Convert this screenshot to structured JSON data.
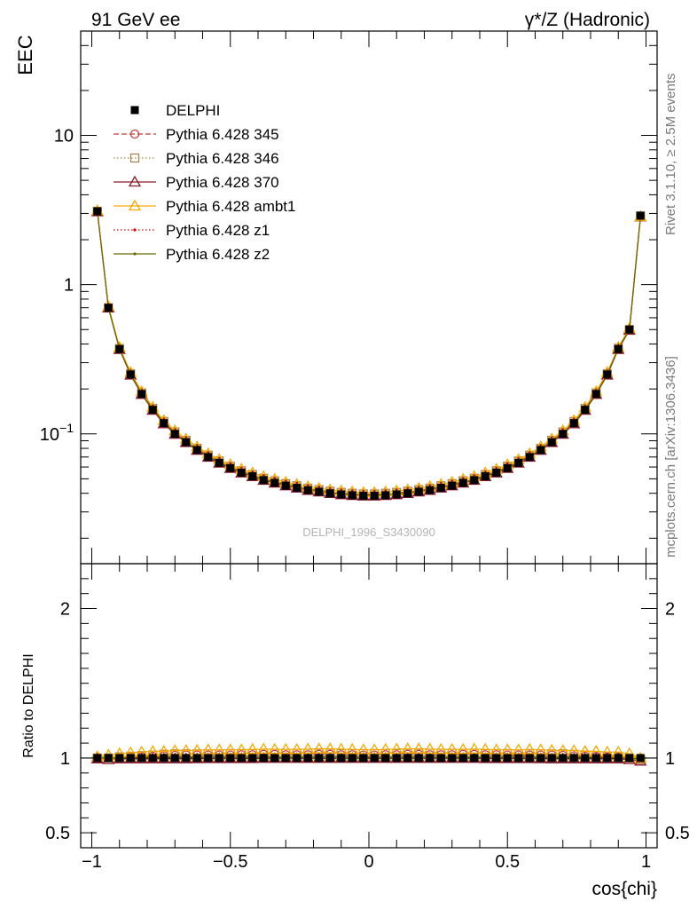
{
  "header": {
    "left_title": "91 GeV ee",
    "right_title_main": "γ*/Z (Hadronic)"
  },
  "side_labels": {
    "rivet": "Rivet 3.1.10, ≥ 2.5M events",
    "mcplots": "mcplots.cern.ch [arXiv:1306.3436]"
  },
  "watermark": "DELPHI_1996_S3430090",
  "chart_data": [
    {
      "type": "line",
      "panel": "main",
      "ylabel": "EEC",
      "xlabel": "cos{chi}",
      "yscale": "log",
      "xlim": [
        -1.04,
        1.04
      ],
      "ylim": [
        0.0135,
        50
      ],
      "yticklabels": [
        {
          "value": 0.1,
          "base": "10",
          "exp": "−1"
        },
        {
          "value": 1,
          "text": "1"
        },
        {
          "value": 10,
          "text": "10"
        }
      ],
      "legend_position": "top-left",
      "x": [
        -0.98,
        -0.94,
        -0.9,
        -0.86,
        -0.82,
        -0.78,
        -0.74,
        -0.7,
        -0.66,
        -0.62,
        -0.58,
        -0.54,
        -0.5,
        -0.46,
        -0.42,
        -0.38,
        -0.34,
        -0.3,
        -0.26,
        -0.22,
        -0.18,
        -0.14,
        -0.1,
        -0.06,
        -0.02,
        0.02,
        0.06,
        0.1,
        0.14,
        0.18,
        0.22,
        0.26,
        0.3,
        0.34,
        0.38,
        0.42,
        0.46,
        0.5,
        0.54,
        0.58,
        0.62,
        0.66,
        0.7,
        0.74,
        0.78,
        0.82,
        0.86,
        0.9,
        0.94,
        0.98
      ],
      "series": [
        {
          "name": "DELPHI",
          "color": "#000000",
          "marker": "filled-square",
          "line": "none",
          "values": [
            3.1,
            0.7,
            0.37,
            0.25,
            0.185,
            0.145,
            0.118,
            0.1,
            0.088,
            0.078,
            0.07,
            0.064,
            0.059,
            0.055,
            0.052,
            0.049,
            0.047,
            0.045,
            0.0435,
            0.042,
            0.041,
            0.04,
            0.0393,
            0.0388,
            0.0385,
            0.0385,
            0.0388,
            0.0393,
            0.04,
            0.041,
            0.042,
            0.0435,
            0.045,
            0.047,
            0.049,
            0.052,
            0.055,
            0.059,
            0.064,
            0.07,
            0.078,
            0.088,
            0.1,
            0.118,
            0.145,
            0.185,
            0.25,
            0.37,
            0.5,
            2.9
          ]
        },
        {
          "name": "Pythia 6.428 345",
          "color": "#c43a3a",
          "marker": "open-circle",
          "line": "dashed",
          "values": [
            3.1,
            0.7,
            0.372,
            0.252,
            0.187,
            0.147,
            0.12,
            0.102,
            0.09,
            0.0795,
            0.0715,
            0.0653,
            0.0602,
            0.0562,
            0.053,
            0.05,
            0.0481,
            0.046,
            0.0445,
            0.043,
            0.042,
            0.041,
            0.0402,
            0.0397,
            0.0393,
            0.0393,
            0.0397,
            0.0402,
            0.041,
            0.042,
            0.043,
            0.0445,
            0.046,
            0.0481,
            0.05,
            0.053,
            0.0562,
            0.0602,
            0.0653,
            0.0715,
            0.0795,
            0.09,
            0.102,
            0.12,
            0.147,
            0.187,
            0.252,
            0.373,
            0.5,
            2.88
          ]
        },
        {
          "name": "Pythia 6.428 346",
          "color": "#a5804a",
          "marker": "open-square",
          "line": "dotted",
          "values": [
            3.1,
            0.7,
            0.373,
            0.253,
            0.188,
            0.148,
            0.121,
            0.103,
            0.0905,
            0.08,
            0.072,
            0.0658,
            0.0607,
            0.0566,
            0.0534,
            0.0504,
            0.0485,
            0.0464,
            0.0449,
            0.0433,
            0.0423,
            0.0413,
            0.0405,
            0.04,
            0.0396,
            0.0396,
            0.04,
            0.0405,
            0.0413,
            0.0423,
            0.0433,
            0.0449,
            0.0464,
            0.0485,
            0.0504,
            0.0534,
            0.0566,
            0.0607,
            0.0658,
            0.072,
            0.08,
            0.0905,
            0.103,
            0.121,
            0.148,
            0.188,
            0.253,
            0.374,
            0.5,
            2.88
          ]
        },
        {
          "name": "Pythia 6.428 370",
          "color": "#8b1a2a",
          "marker": "open-triangle",
          "line": "solid",
          "values": [
            3.08,
            0.698,
            0.368,
            0.248,
            0.184,
            0.144,
            0.117,
            0.0995,
            0.0876,
            0.0777,
            0.0698,
            0.0638,
            0.0588,
            0.0548,
            0.0518,
            0.0489,
            0.0469,
            0.0449,
            0.0434,
            0.0419,
            0.0409,
            0.0399,
            0.0392,
            0.0387,
            0.0384,
            0.0384,
            0.0387,
            0.0392,
            0.0399,
            0.0409,
            0.0419,
            0.0434,
            0.0449,
            0.0469,
            0.0489,
            0.0518,
            0.0548,
            0.0588,
            0.0638,
            0.0698,
            0.0777,
            0.0876,
            0.0995,
            0.117,
            0.144,
            0.184,
            0.248,
            0.368,
            0.495,
            2.85
          ]
        },
        {
          "name": "Pythia 6.428 ambt1",
          "color": "#f5a800",
          "marker": "open-triangle",
          "line": "solid",
          "values": [
            3.13,
            0.715,
            0.38,
            0.258,
            0.192,
            0.151,
            0.123,
            0.105,
            0.0925,
            0.082,
            0.0738,
            0.0674,
            0.0622,
            0.058,
            0.0548,
            0.0518,
            0.0496,
            0.0475,
            0.0459,
            0.0444,
            0.0433,
            0.0422,
            0.0415,
            0.0409,
            0.0405,
            0.0405,
            0.0409,
            0.0415,
            0.0422,
            0.0433,
            0.0444,
            0.0459,
            0.0475,
            0.0496,
            0.0518,
            0.0548,
            0.058,
            0.0622,
            0.0674,
            0.0738,
            0.082,
            0.0925,
            0.105,
            0.123,
            0.151,
            0.192,
            0.258,
            0.38,
            0.51,
            2.86
          ]
        },
        {
          "name": "Pythia 6.428 z1",
          "color": "#d00000",
          "marker": "dot",
          "line": "dotted",
          "values": [
            3.1,
            0.7,
            0.371,
            0.251,
            0.186,
            0.146,
            0.119,
            0.101,
            0.089,
            0.0788,
            0.0709,
            0.0648,
            0.0597,
            0.0557,
            0.0526,
            0.0496,
            0.0477,
            0.0456,
            0.0441,
            0.0426,
            0.0416,
            0.0406,
            0.0398,
            0.0393,
            0.039,
            0.039,
            0.0393,
            0.0398,
            0.0406,
            0.0416,
            0.0426,
            0.0441,
            0.0456,
            0.0477,
            0.0496,
            0.0526,
            0.0557,
            0.0597,
            0.0648,
            0.0709,
            0.0788,
            0.089,
            0.101,
            0.119,
            0.146,
            0.186,
            0.251,
            0.372,
            0.5,
            2.88
          ]
        },
        {
          "name": "Pythia 6.428 z2",
          "color": "#6b6b00",
          "marker": "dot",
          "line": "solid",
          "values": [
            3.1,
            0.7,
            0.371,
            0.251,
            0.186,
            0.146,
            0.119,
            0.101,
            0.0888,
            0.0786,
            0.0707,
            0.0646,
            0.0595,
            0.0555,
            0.0524,
            0.0494,
            0.0475,
            0.0454,
            0.0439,
            0.0424,
            0.0414,
            0.0404,
            0.0396,
            0.0391,
            0.0388,
            0.0388,
            0.0391,
            0.0396,
            0.0404,
            0.0414,
            0.0424,
            0.0439,
            0.0454,
            0.0475,
            0.0494,
            0.0524,
            0.0555,
            0.0595,
            0.0646,
            0.0707,
            0.0786,
            0.0888,
            0.101,
            0.119,
            0.146,
            0.186,
            0.251,
            0.372,
            0.5,
            2.88
          ]
        }
      ]
    },
    {
      "type": "line",
      "panel": "ratio",
      "ylabel": "Ratio to DELPHI",
      "xlabel": "cos{chi}",
      "xlim": [
        -1.04,
        1.04
      ],
      "ylim": [
        0.4,
        2.3
      ],
      "yticks": [
        0.5,
        1,
        2
      ],
      "yticklabels": [
        "0.5",
        "1",
        "2"
      ],
      "xticks": [
        -1,
        -0.5,
        0,
        0.5,
        1
      ],
      "xticklabels": [
        "−1",
        "−0.5",
        "0",
        "0.5",
        "1"
      ],
      "reference_line": 1,
      "uncertainty_bands": {
        "green_halfwidth": 0.012,
        "yellow_halfwidth": 0.025,
        "green": "#86e58a",
        "yellow": "#f7f79a"
      },
      "x": [
        -0.98,
        -0.94,
        -0.9,
        -0.86,
        -0.82,
        -0.78,
        -0.74,
        -0.7,
        -0.66,
        -0.62,
        -0.58,
        -0.54,
        -0.5,
        -0.46,
        -0.42,
        -0.38,
        -0.34,
        -0.3,
        -0.26,
        -0.22,
        -0.18,
        -0.14,
        -0.1,
        -0.06,
        -0.02,
        0.02,
        0.06,
        0.1,
        0.14,
        0.18,
        0.22,
        0.26,
        0.3,
        0.34,
        0.38,
        0.42,
        0.46,
        0.5,
        0.54,
        0.58,
        0.62,
        0.66,
        0.7,
        0.74,
        0.78,
        0.82,
        0.86,
        0.9,
        0.94,
        0.98
      ],
      "series": [
        {
          "name": "Pythia 6.428 345",
          "color": "#c43a3a",
          "marker": "open-circle",
          "line": "dashed",
          "values": [
            1.0,
            1.0,
            1.005,
            1.008,
            1.01,
            1.012,
            1.015,
            1.018,
            1.02,
            1.02,
            1.02,
            1.02,
            1.02,
            1.022,
            1.022,
            1.025,
            1.025,
            1.022,
            1.022,
            1.022,
            1.025,
            1.025,
            1.022,
            1.022,
            1.02,
            1.02,
            1.022,
            1.022,
            1.025,
            1.025,
            1.022,
            1.022,
            1.022,
            1.025,
            1.025,
            1.022,
            1.022,
            1.02,
            1.02,
            1.02,
            1.02,
            1.02,
            1.018,
            1.015,
            1.012,
            1.01,
            1.008,
            1.005,
            1.0,
            0.99
          ]
        },
        {
          "name": "Pythia 6.428 346",
          "color": "#a5804a",
          "marker": "open-square",
          "line": "dotted",
          "values": [
            1.0,
            1.0,
            1.008,
            1.012,
            1.016,
            1.02,
            1.025,
            1.028,
            1.028,
            1.028,
            1.028,
            1.028,
            1.03,
            1.03,
            1.03,
            1.032,
            1.032,
            1.032,
            1.032,
            1.032,
            1.032,
            1.032,
            1.03,
            1.03,
            1.03,
            1.03,
            1.03,
            1.03,
            1.032,
            1.032,
            1.032,
            1.032,
            1.032,
            1.032,
            1.032,
            1.03,
            1.03,
            1.03,
            1.028,
            1.028,
            1.028,
            1.028,
            1.028,
            1.025,
            1.02,
            1.016,
            1.012,
            1.008,
            1.0,
            0.99
          ]
        },
        {
          "name": "Pythia 6.428 370",
          "color": "#8b1a2a",
          "marker": "open-triangle",
          "line": "solid",
          "values": [
            0.995,
            0.99,
            0.995,
            0.995,
            0.995,
            0.995,
            0.995,
            0.995,
            0.995,
            0.996,
            0.997,
            0.997,
            0.997,
            0.997,
            0.997,
            0.998,
            0.998,
            0.998,
            0.998,
            0.998,
            0.998,
            0.998,
            0.998,
            0.998,
            0.998,
            0.998,
            0.998,
            0.998,
            0.998,
            0.998,
            0.998,
            0.998,
            0.998,
            0.998,
            0.998,
            0.997,
            0.997,
            0.997,
            0.997,
            0.997,
            0.996,
            0.995,
            0.995,
            0.995,
            0.995,
            0.995,
            0.995,
            0.995,
            0.99,
            0.98
          ]
        },
        {
          "name": "Pythia 6.428 ambt1",
          "color": "#f5a800",
          "marker": "open-triangle",
          "line": "solid",
          "values": [
            1.01,
            1.02,
            1.03,
            1.035,
            1.04,
            1.045,
            1.045,
            1.05,
            1.05,
            1.052,
            1.055,
            1.055,
            1.055,
            1.055,
            1.058,
            1.06,
            1.058,
            1.058,
            1.058,
            1.06,
            1.062,
            1.062,
            1.06,
            1.058,
            1.055,
            1.055,
            1.058,
            1.06,
            1.062,
            1.062,
            1.06,
            1.058,
            1.058,
            1.058,
            1.06,
            1.058,
            1.055,
            1.055,
            1.055,
            1.058,
            1.055,
            1.052,
            1.05,
            1.05,
            1.045,
            1.045,
            1.04,
            1.04,
            1.03,
            1.0
          ]
        },
        {
          "name": "Pythia 6.428 z1",
          "color": "#d00000",
          "marker": "dot",
          "line": "dotted",
          "values": [
            1.0,
            1.0,
            1.003,
            1.005,
            1.006,
            1.007,
            1.008,
            1.009,
            1.01,
            1.01,
            1.012,
            1.012,
            1.012,
            1.012,
            1.012,
            1.013,
            1.013,
            1.013,
            1.013,
            1.013,
            1.013,
            1.013,
            1.013,
            1.013,
            1.012,
            1.012,
            1.013,
            1.013,
            1.013,
            1.013,
            1.013,
            1.013,
            1.013,
            1.013,
            1.013,
            1.012,
            1.012,
            1.012,
            1.012,
            1.012,
            1.01,
            1.01,
            1.009,
            1.008,
            1.007,
            1.006,
            1.005,
            1.003,
            1.0,
            0.99
          ]
        },
        {
          "name": "Pythia 6.428 z2",
          "color": "#6b6b00",
          "marker": "dot",
          "line": "solid",
          "values": [
            1.0,
            1.0,
            1.002,
            1.004,
            1.005,
            1.006,
            1.007,
            1.008,
            1.008,
            1.008,
            1.009,
            1.009,
            1.01,
            1.01,
            1.01,
            1.01,
            1.01,
            1.01,
            1.01,
            1.01,
            1.01,
            1.01,
            1.01,
            1.01,
            1.008,
            1.008,
            1.01,
            1.01,
            1.01,
            1.01,
            1.01,
            1.01,
            1.01,
            1.01,
            1.01,
            1.01,
            1.01,
            1.01,
            1.009,
            1.009,
            1.008,
            1.008,
            1.008,
            1.007,
            1.006,
            1.005,
            1.004,
            1.002,
            1.0,
            0.99
          ]
        }
      ]
    }
  ]
}
